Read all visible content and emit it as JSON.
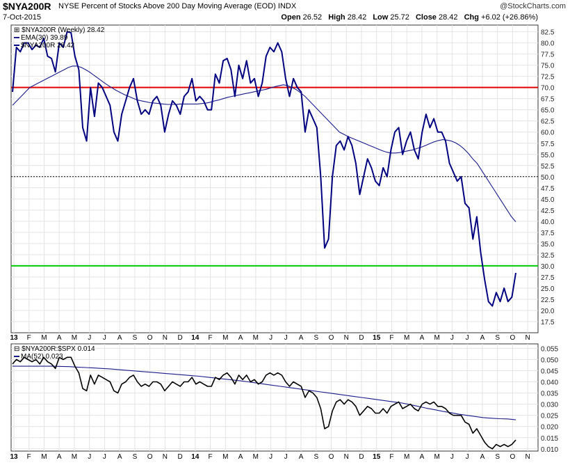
{
  "header": {
    "symbol": "$NYA200R",
    "description": "NYSE Percent of Stocks Above 200 Day Moving Average (EOD) INDX",
    "date": "7-Oct-2015",
    "watermark": "@StockCharts.com",
    "ohlc": {
      "open_label": "Open",
      "open": "26.52",
      "high_label": "High",
      "high": "28.42",
      "low_label": "Low",
      "low": "25.72",
      "close_label": "Close",
      "close": "28.42",
      "chg_label": "Chg",
      "chg": "+6.02 (+26.86%)"
    }
  },
  "chart_data": [
    {
      "type": "line",
      "title": "$NYA200R (Weekly) 28.42",
      "ylim": [
        15,
        84
      ],
      "y_ticks": [
        "82.5",
        "80.0",
        "77.5",
        "75.0",
        "72.5",
        "70.0",
        "67.5",
        "65.0",
        "62.5",
        "60.0",
        "57.5",
        "55.0",
        "52.5",
        "50.0",
        "47.5",
        "45.0",
        "42.5",
        "40.0",
        "37.5",
        "35.0",
        "32.5",
        "30.0",
        "27.5",
        "25.0",
        "22.5",
        "20.0",
        "17.5"
      ],
      "x_ticks": [
        "13",
        "F",
        "M",
        "A",
        "M",
        "J",
        "J",
        "A",
        "S",
        "O",
        "N",
        "D",
        "14",
        "F",
        "M",
        "A",
        "M",
        "J",
        "J",
        "A",
        "S",
        "O",
        "N",
        "D",
        "15",
        "F",
        "M",
        "A",
        "M",
        "J",
        "J",
        "A",
        "S",
        "O",
        "N"
      ],
      "reference_lines": [
        {
          "value": 70,
          "color": "#e00000",
          "style": "solid"
        },
        {
          "value": 50,
          "color": "#000000",
          "style": "dotted"
        },
        {
          "value": 30,
          "color": "#00cc00",
          "style": "solid"
        }
      ],
      "series": [
        {
          "name": "EMA(30) 39.89",
          "color": "#1a1a8c",
          "values": [
            66,
            67,
            68,
            69,
            70,
            70.5,
            71,
            71.5,
            72,
            72.5,
            73,
            73.5,
            74,
            74.5,
            74.8,
            74.8,
            74.5,
            74,
            73.4,
            72.7,
            72,
            71.3,
            70.6,
            70,
            69.4,
            68.9,
            68.4,
            68,
            67.6,
            67.2,
            67,
            66.8,
            66.6,
            66.5,
            66.4,
            66.3,
            66.2,
            66.2,
            66.2,
            66.3,
            66.3,
            66.3,
            66.3,
            66.3,
            66.4,
            66.5,
            66.7,
            67,
            67.2,
            67.5,
            67.8,
            68,
            68.2,
            68.4,
            68.6,
            68.8,
            69,
            69.2,
            69.4,
            69.6,
            69.9,
            70.2,
            70.4,
            70.6,
            70.4,
            70,
            69.5,
            68.8,
            68,
            67,
            66,
            65,
            64,
            63,
            62,
            61,
            60,
            59.5,
            59,
            58.6,
            58.2,
            57.8,
            57.4,
            57,
            56.6,
            56.2,
            55.8,
            55.5,
            55.3,
            55.3,
            55.4,
            55.6,
            55.8,
            56,
            56.3,
            56.6,
            57,
            57.4,
            57.8,
            58.1,
            58.3,
            58.2,
            58,
            57.6,
            57,
            56.2,
            55.2,
            54,
            53,
            51.5,
            50,
            48.5,
            47,
            45.5,
            44,
            42.5,
            41,
            39.89
          ]
        },
        {
          "name": "$NYA200R 28.42",
          "color": "#000080",
          "values": [
            69,
            79,
            78,
            80,
            80,
            78.5,
            79.5,
            79,
            81,
            77,
            76.5,
            73.5,
            80,
            79,
            82.5,
            82.3,
            77,
            74,
            61,
            58,
            70,
            63.5,
            71,
            70,
            68,
            66,
            60,
            58,
            64,
            67,
            70,
            72,
            67,
            64,
            65,
            64,
            67,
            68,
            66,
            60,
            64,
            67,
            66,
            64,
            68,
            69,
            72,
            67,
            68,
            67,
            65,
            65,
            73,
            71,
            76,
            76.5,
            74,
            68,
            75,
            72,
            76,
            71,
            72,
            68,
            71,
            77,
            79,
            78,
            80,
            78,
            72,
            68,
            72,
            70,
            69,
            60,
            65,
            63,
            61,
            50,
            34,
            36,
            50,
            57,
            58,
            56,
            59,
            57,
            53,
            46,
            50,
            54,
            52,
            49,
            48,
            52,
            50,
            56,
            60,
            61,
            55,
            58,
            60,
            56,
            54,
            60,
            64,
            61,
            63,
            60,
            60,
            58,
            53,
            51,
            49,
            50,
            44,
            43,
            36,
            41,
            33,
            27,
            22,
            21,
            24,
            22,
            25,
            22,
            23,
            28.42
          ]
        }
      ]
    },
    {
      "type": "line",
      "title": "$NYA200R:$SPX 0.014",
      "ylim": [
        0.009,
        0.057
      ],
      "y_ticks": [
        "0.055",
        "0.050",
        "0.045",
        "0.040",
        "0.035",
        "0.030",
        "0.025",
        "0.020",
        "0.015",
        "0.010"
      ],
      "x_ticks": [
        "13",
        "F",
        "M",
        "A",
        "M",
        "J",
        "J",
        "A",
        "S",
        "O",
        "N",
        "D",
        "14",
        "F",
        "M",
        "A",
        "M",
        "J",
        "J",
        "A",
        "S",
        "O",
        "N",
        "D",
        "15",
        "F",
        "M",
        "A",
        "M",
        "J",
        "J",
        "A",
        "S",
        "O",
        "N"
      ],
      "series": [
        {
          "name": "MA(52) 0.023",
          "color": "#1a1a8c",
          "values": [
            0.047,
            0.047,
            0.047,
            0.047,
            0.047,
            0.047,
            0.0469,
            0.0468,
            0.0466,
            0.0464,
            0.0462,
            0.046,
            0.0458,
            0.0455,
            0.0452,
            0.0449,
            0.0446,
            0.0443,
            0.044,
            0.0437,
            0.0434,
            0.0431,
            0.0428,
            0.0425,
            0.0421,
            0.0417,
            0.0413,
            0.0409,
            0.0405,
            0.04,
            0.0395,
            0.039,
            0.0385,
            0.038,
            0.0375,
            0.037,
            0.0365,
            0.036,
            0.0355,
            0.035,
            0.0345,
            0.034,
            0.0335,
            0.033,
            0.0325,
            0.032,
            0.0315,
            0.031,
            0.0305,
            0.0298,
            0.029,
            0.0282,
            0.0275,
            0.0268,
            0.0262,
            0.0255,
            0.025,
            0.0245,
            0.024,
            0.0237,
            0.0235,
            0.0234,
            0.023
          ]
        },
        {
          "name": "$NYA200R:$SPX",
          "color": "#000000",
          "values": [
            0.048,
            0.05,
            0.049,
            0.051,
            0.05,
            0.049,
            0.05,
            0.048,
            0.051,
            0.049,
            0.048,
            0.046,
            0.051,
            0.05,
            0.051,
            0.051,
            0.047,
            0.044,
            0.037,
            0.036,
            0.043,
            0.039,
            0.043,
            0.042,
            0.041,
            0.04,
            0.036,
            0.035,
            0.039,
            0.04,
            0.042,
            0.043,
            0.04,
            0.038,
            0.039,
            0.038,
            0.04,
            0.04,
            0.039,
            0.036,
            0.038,
            0.04,
            0.039,
            0.038,
            0.04,
            0.04,
            0.042,
            0.039,
            0.04,
            0.039,
            0.038,
            0.038,
            0.042,
            0.041,
            0.043,
            0.044,
            0.042,
            0.039,
            0.043,
            0.041,
            0.043,
            0.04,
            0.041,
            0.039,
            0.04,
            0.043,
            0.044,
            0.043,
            0.044,
            0.043,
            0.04,
            0.038,
            0.04,
            0.039,
            0.038,
            0.033,
            0.036,
            0.035,
            0.033,
            0.028,
            0.019,
            0.02,
            0.027,
            0.031,
            0.032,
            0.03,
            0.032,
            0.031,
            0.029,
            0.025,
            0.027,
            0.029,
            0.028,
            0.026,
            0.026,
            0.028,
            0.026,
            0.029,
            0.03,
            0.031,
            0.028,
            0.029,
            0.03,
            0.028,
            0.027,
            0.03,
            0.031,
            0.03,
            0.031,
            0.029,
            0.029,
            0.028,
            0.026,
            0.025,
            0.025,
            0.025,
            0.022,
            0.021,
            0.017,
            0.019,
            0.016,
            0.013,
            0.011,
            0.01,
            0.012,
            0.011,
            0.012,
            0.011,
            0.012,
            0.014
          ]
        }
      ]
    }
  ]
}
